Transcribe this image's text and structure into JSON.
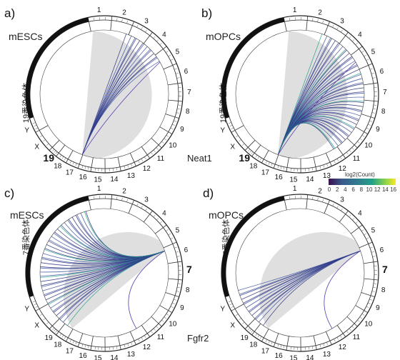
{
  "gene_labels": {
    "top": "Neat1",
    "bottom": "Fgfr2"
  },
  "panels": [
    {
      "id": "a",
      "tag": "a)",
      "condition": "mESCs",
      "vertical_label": "19番染色体",
      "chromosome": "19",
      "style": "sparse-bottom",
      "chromosomes": [
        "1",
        "2",
        "3",
        "4",
        "5",
        "6",
        "7",
        "8",
        "9",
        "10",
        "11",
        "12",
        "13",
        "14",
        "15",
        "16",
        "17",
        "18",
        "19",
        "X",
        "Y"
      ]
    },
    {
      "id": "b",
      "tag": "b)",
      "condition": "mOPCs",
      "vertical_label": "19番染色体",
      "chromosome": "19",
      "style": "dense-bottom",
      "chromosomes": [
        "1",
        "2",
        "3",
        "4",
        "5",
        "6",
        "7",
        "8",
        "9",
        "10",
        "11",
        "12",
        "13",
        "14",
        "15",
        "16",
        "17",
        "18",
        "19",
        "X",
        "Y"
      ]
    },
    {
      "id": "c",
      "tag": "c)",
      "condition": "mESCs",
      "vertical_label": "7番染色体",
      "chromosome": "7",
      "style": "dense-right",
      "chromosomes": [
        "1",
        "2",
        "3",
        "4",
        "5",
        "6",
        "7",
        "8",
        "9",
        "10",
        "11",
        "12",
        "13",
        "14",
        "15",
        "16",
        "17",
        "18",
        "19",
        "X",
        "Y"
      ]
    },
    {
      "id": "d",
      "tag": "d)",
      "condition": "mOPCs",
      "vertical_label": "7番染色体",
      "chromosome": "7",
      "style": "sparse-right",
      "chromosomes": [
        "1",
        "2",
        "3",
        "4",
        "5",
        "6",
        "7",
        "8",
        "9",
        "10",
        "11",
        "12",
        "13",
        "14",
        "15",
        "16",
        "17",
        "18",
        "19",
        "X",
        "Y"
      ]
    }
  ],
  "legend": {
    "title": "log2(Count)",
    "ticks": [
      "0",
      "2",
      "4",
      "6",
      "8",
      "10",
      "12",
      "14",
      "16"
    ],
    "colors": [
      "#3b0f4f",
      "#45307a",
      "#3a5a8c",
      "#2f7f8e",
      "#22a187",
      "#3fbf72",
      "#8bd54a",
      "#d9e335",
      "#fde725"
    ]
  },
  "colors": {
    "link": "#3c4fa0",
    "link_dark": "#2a2f7a",
    "link_hi": "#22a187",
    "wedge": "#d9d9d9",
    "ring": "#222222"
  }
}
